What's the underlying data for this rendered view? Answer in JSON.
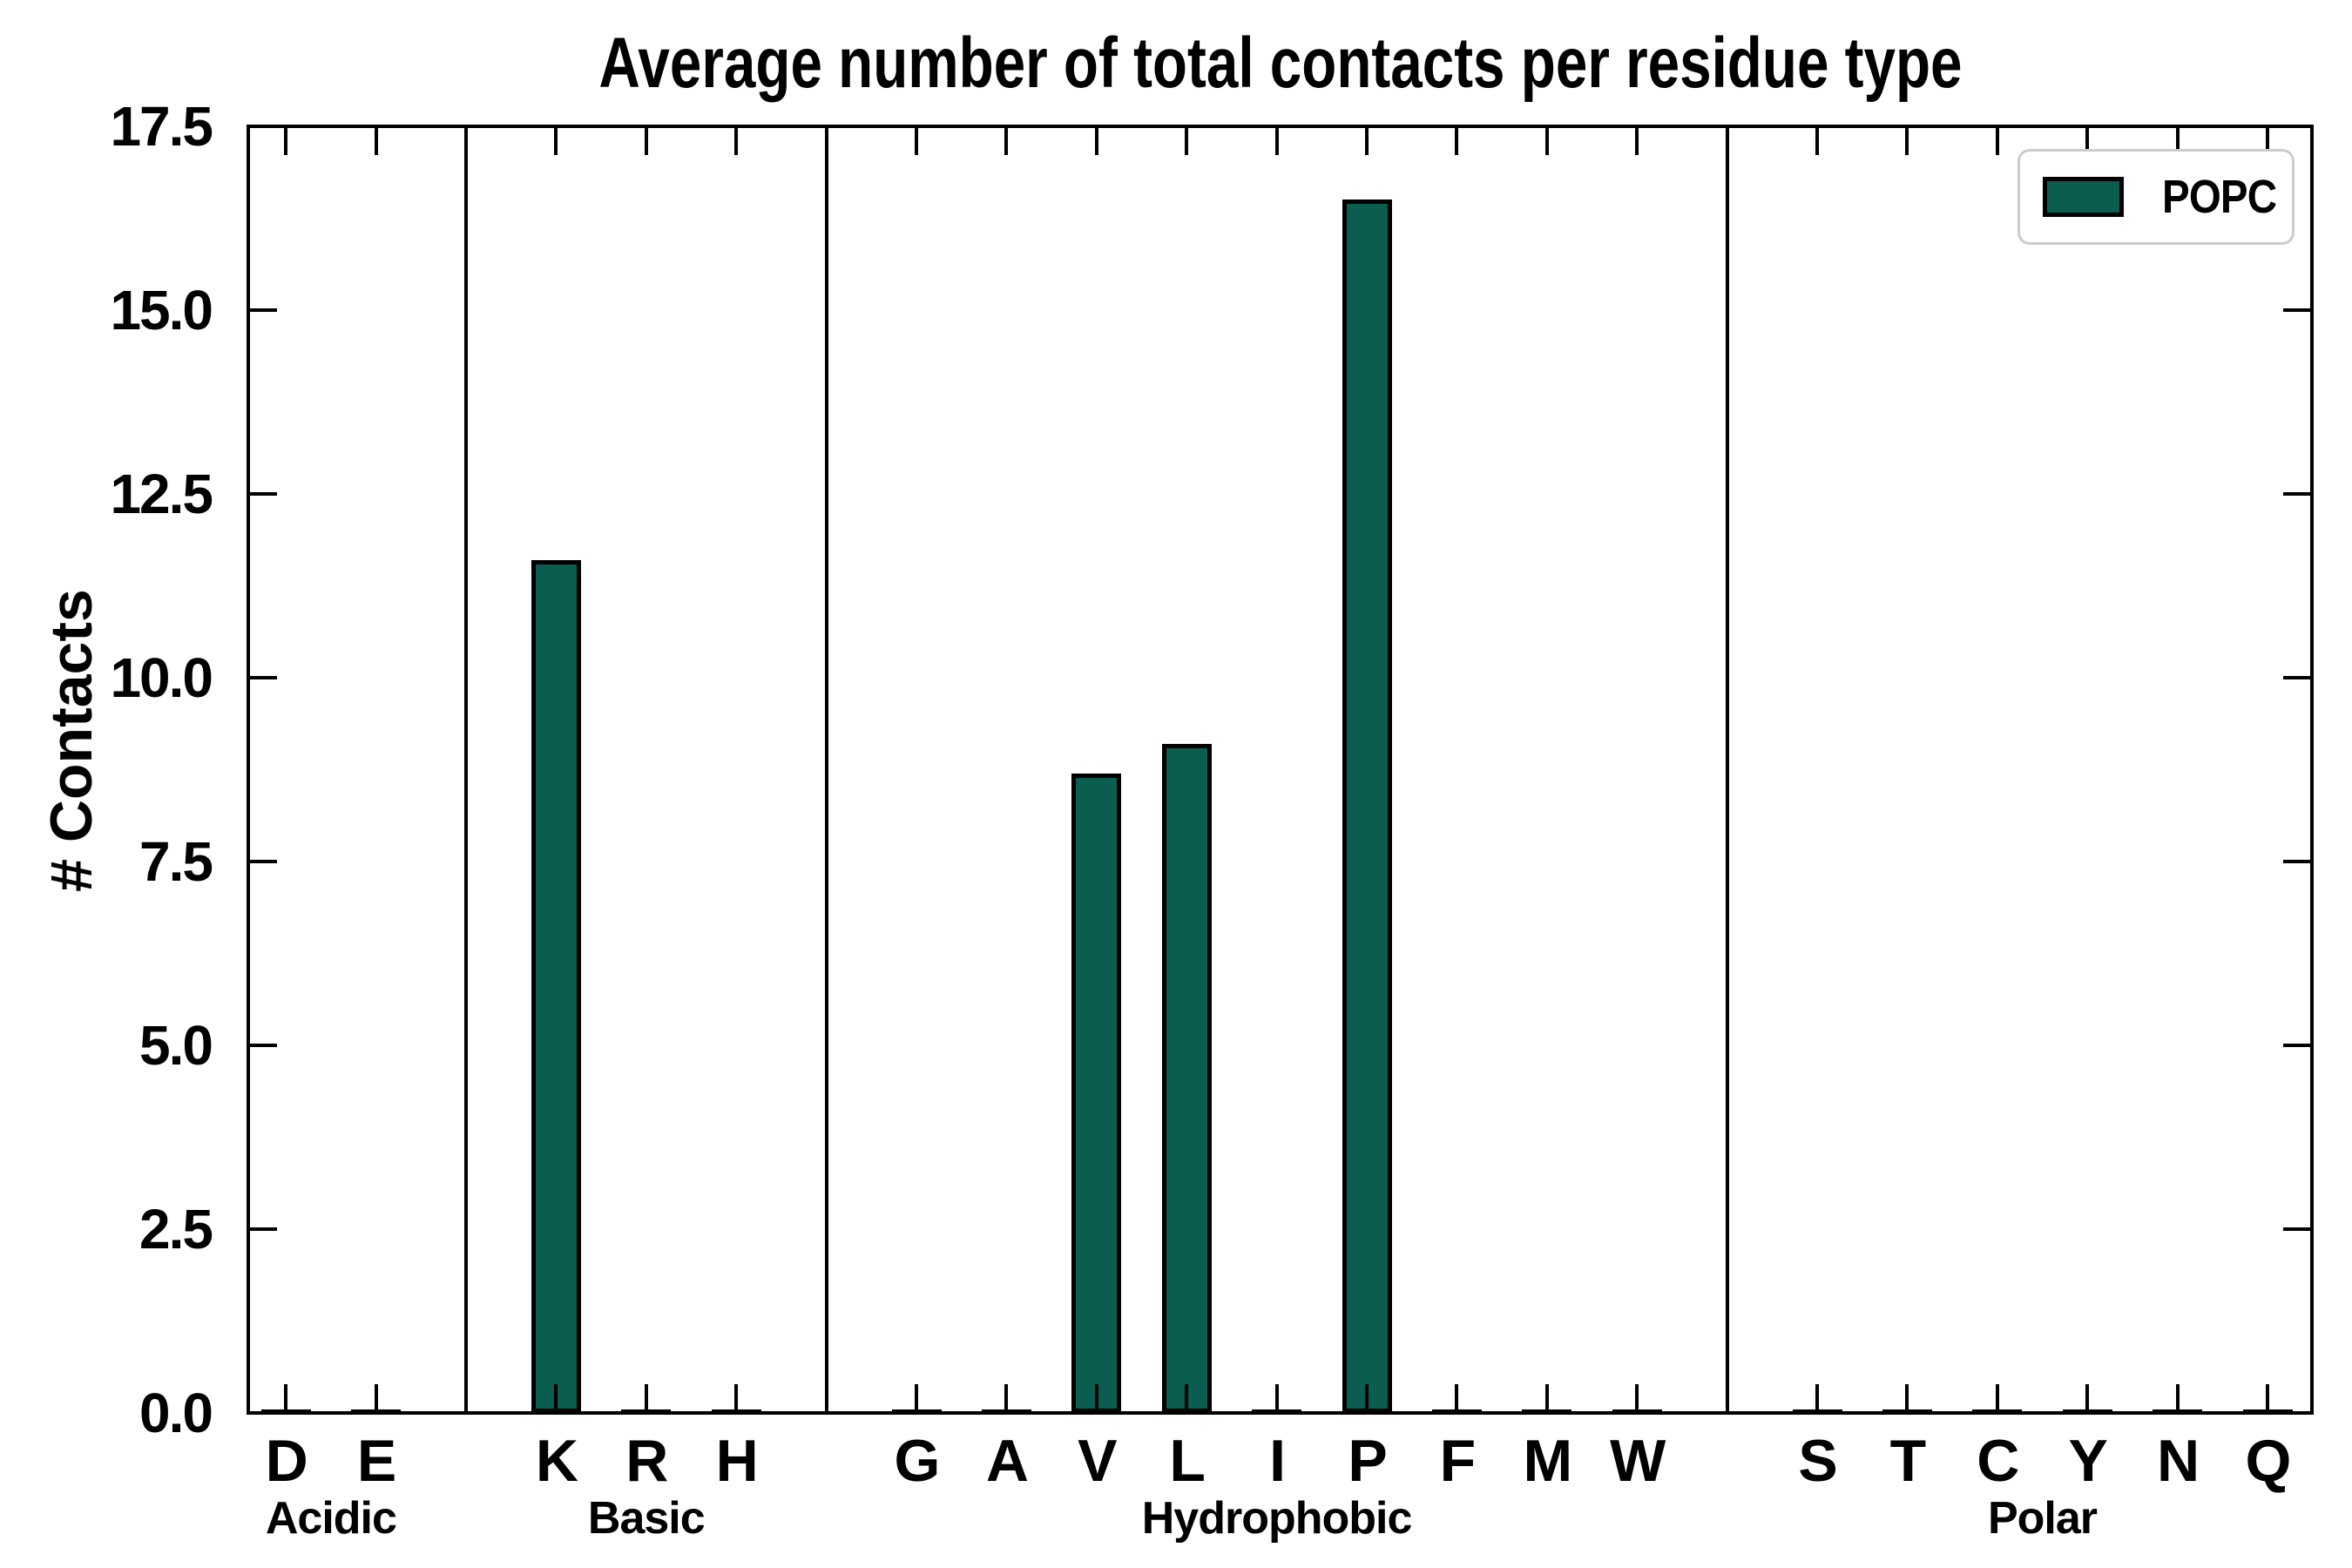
{
  "chart_data": {
    "type": "bar",
    "title": "Average number of total contacts per residue type",
    "ylabel": "# Contacts",
    "xlabel": "",
    "ylim": [
      0,
      17.5
    ],
    "ytick_labels": [
      "0.0",
      "2.5",
      "5.0",
      "7.5",
      "10.0",
      "12.5",
      "15.0",
      "17.5"
    ],
    "grid": false,
    "tick_direction": "in",
    "legend": {
      "position": "upper right",
      "entries": [
        {
          "label": "POPC",
          "color": "#0b5d4f"
        }
      ]
    },
    "colors": {
      "bar_fill": "#0b5d4f",
      "bar_edge": "#000000",
      "axes": "#000000",
      "legend_border": "#cccccc",
      "background": "#ffffff"
    },
    "groups": [
      {
        "label": "Acidic",
        "categories": [
          "D",
          "E"
        ],
        "values": [
          0.05,
          0.05
        ]
      },
      {
        "label": "Basic",
        "categories": [
          "K",
          "R",
          "H"
        ],
        "values": [
          11.6,
          0.05,
          0.05
        ]
      },
      {
        "label": "Hydrophobic",
        "categories": [
          "G",
          "A",
          "V",
          "L",
          "I",
          "P",
          "F",
          "M",
          "W"
        ],
        "values": [
          0.05,
          0.05,
          8.7,
          9.1,
          0.05,
          16.5,
          0.05,
          0.05,
          0.05
        ]
      },
      {
        "label": "Polar",
        "categories": [
          "S",
          "T",
          "C",
          "Y",
          "N",
          "Q"
        ],
        "values": [
          0.05,
          0.05,
          0.05,
          0.05,
          0.05,
          0.05
        ]
      }
    ],
    "series": [
      {
        "name": "POPC",
        "categories": [
          "D",
          "E",
          "K",
          "R",
          "H",
          "G",
          "A",
          "V",
          "L",
          "I",
          "P",
          "F",
          "M",
          "W",
          "S",
          "T",
          "C",
          "Y",
          "N",
          "Q"
        ],
        "values": [
          0.05,
          0.05,
          11.6,
          0.05,
          0.05,
          0.05,
          0.05,
          8.7,
          9.1,
          0.05,
          16.5,
          0.05,
          0.05,
          0.05,
          0.05,
          0.05,
          0.05,
          0.05,
          0.05,
          0.05
        ]
      }
    ]
  }
}
